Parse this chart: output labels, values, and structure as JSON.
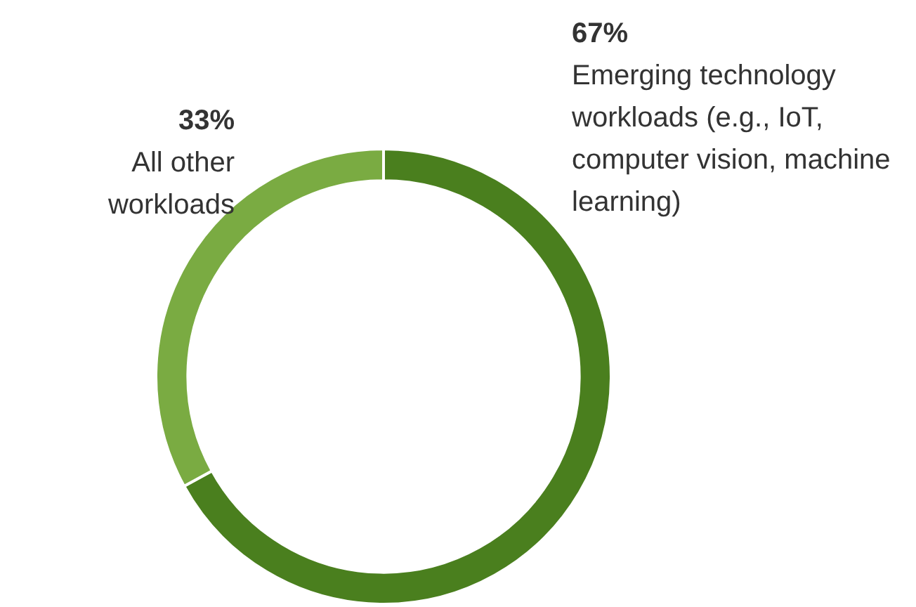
{
  "chart_data": {
    "type": "donut",
    "categories": [
      "Emerging technology workloads (e.g., IoT, computer vision, machine learning)",
      "All other workloads"
    ],
    "values": [
      67,
      33
    ],
    "colors": [
      "#4a7f1e",
      "#7aab42"
    ],
    "value_labels": [
      "67%",
      "33%"
    ],
    "legend": false
  }
}
